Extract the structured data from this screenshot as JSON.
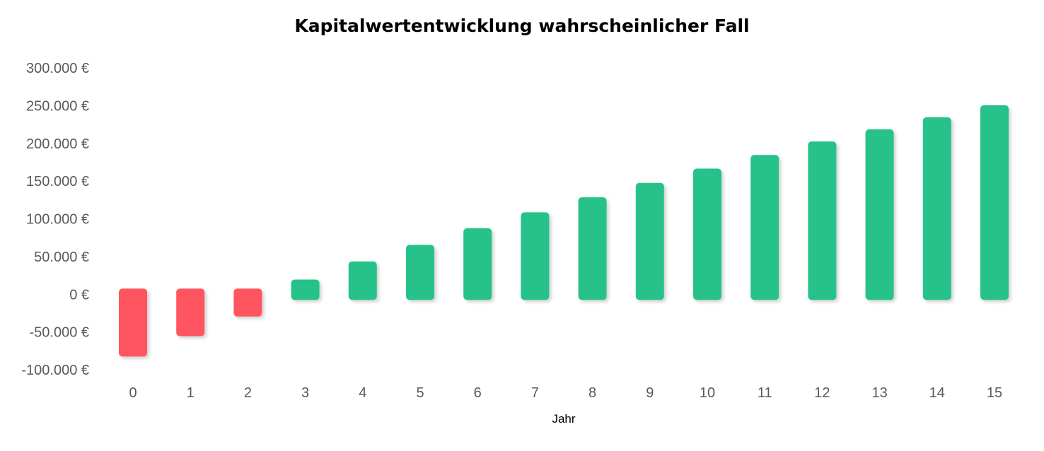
{
  "chart_data": {
    "type": "bar",
    "title": "Kapitalwertentwicklung wahrscheinlicher Fall",
    "xlabel": "Jahr",
    "ylabel": "",
    "categories": [
      "0",
      "1",
      "2",
      "3",
      "4",
      "5",
      "6",
      "7",
      "8",
      "9",
      "10",
      "11",
      "12",
      "13",
      "14",
      "15"
    ],
    "values": [
      -75000,
      -48000,
      -22000,
      12000,
      36000,
      58000,
      80000,
      101000,
      121000,
      140000,
      159000,
      177000,
      195000,
      211000,
      227000,
      243000
    ],
    "ylim": [
      -100000,
      300000
    ],
    "yticks": [
      300000,
      250000,
      200000,
      150000,
      100000,
      50000,
      0,
      -50000,
      -100000
    ],
    "ytick_labels": [
      "300.000 €",
      "250.000 €",
      "200.000 €",
      "150.000 €",
      "100.000 €",
      "50.000 €",
      "0 €",
      "-50.000 €",
      "-100.000 €"
    ],
    "grid": false,
    "legend": "none",
    "colors": {
      "positive": "#26C28A",
      "negative": "#FF5560"
    }
  }
}
